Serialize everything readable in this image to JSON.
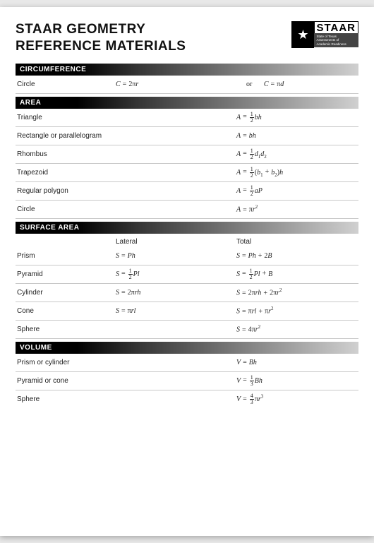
{
  "title_line1": "STAAR GEOMETRY",
  "title_line2": "REFERENCE MATERIALS",
  "logo": {
    "text": "STAAR",
    "sub1": "State of Texas",
    "sub2": "Assessments of",
    "sub3": "Academic Readiness"
  },
  "sections": {
    "circumference": {
      "heading": "CIRCUMFERENCE",
      "circle": {
        "label": "Circle",
        "f1": "C = 2πr",
        "or": "or",
        "f2": "C = πd"
      }
    },
    "area": {
      "heading": "AREA",
      "triangle": {
        "label": "Triangle",
        "f": "A = ½bh"
      },
      "rect": {
        "label": "Rectangle or parallelogram",
        "f": "A = bh"
      },
      "rhombus": {
        "label": "Rhombus",
        "f": "A = ½d₁d₂"
      },
      "trapezoid": {
        "label": "Trapezoid",
        "f": "A = ½(b₁ + b₂)h"
      },
      "regpoly": {
        "label": "Regular polygon",
        "f": "A = ½aP"
      },
      "circle": {
        "label": "Circle",
        "f": "A = πr²"
      }
    },
    "surface": {
      "heading": "SURFACE AREA",
      "col1": "Lateral",
      "col2": "Total",
      "prism": {
        "label": "Prism",
        "lat": "S = Ph",
        "tot": "S = Ph + 2B"
      },
      "pyramid": {
        "label": "Pyramid",
        "lat": "S = ½Pl",
        "tot": "S = ½Pl + B"
      },
      "cylinder": {
        "label": "Cylinder",
        "lat": "S = 2πrh",
        "tot": "S = 2πrh + 2πr²"
      },
      "cone": {
        "label": "Cone",
        "lat": "S = πrl",
        "tot": "S = πrl + πr²"
      },
      "sphere": {
        "label": "Sphere",
        "tot": "S = 4πr²"
      }
    },
    "volume": {
      "heading": "VOLUME",
      "prism": {
        "label": "Prism or cylinder",
        "f": "V = Bh"
      },
      "pyramid": {
        "label": "Pyramid or cone",
        "f": "V = ⅓Bh"
      },
      "sphere": {
        "label": "Sphere",
        "f": "V = 4/3 πr³"
      }
    }
  }
}
